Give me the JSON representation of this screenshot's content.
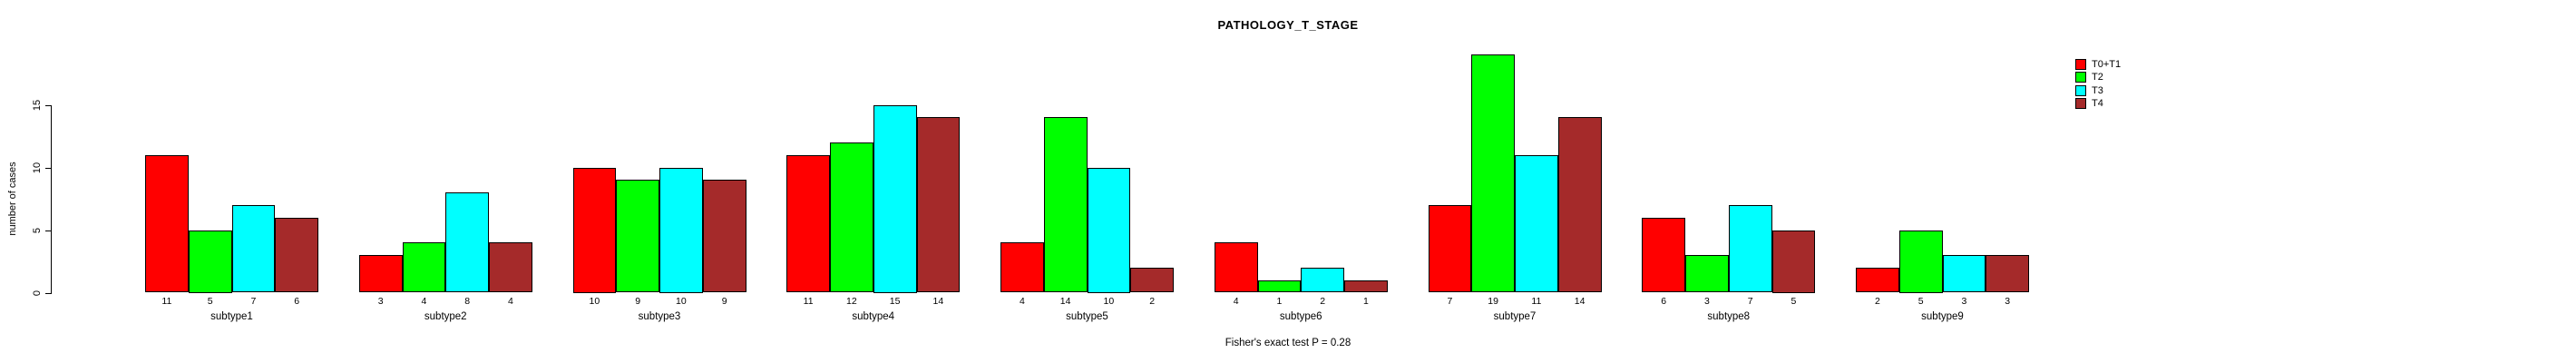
{
  "chart_data": {
    "type": "bar",
    "title": "PATHOLOGY_T_STAGE",
    "ylabel": "number of cases",
    "footer": "Fisher's exact test P = 0.28",
    "categories": [
      "subtype1",
      "subtype2",
      "subtype3",
      "subtype4",
      "subtype5",
      "subtype6",
      "subtype7",
      "subtype8",
      "subtype9"
    ],
    "series": [
      {
        "name": "T0+T1",
        "color": "#FF0000",
        "values": [
          11,
          3,
          10,
          11,
          4,
          4,
          7,
          6,
          2
        ]
      },
      {
        "name": "T2",
        "color": "#00FF00",
        "values": [
          5,
          4,
          9,
          12,
          14,
          1,
          19,
          3,
          5
        ]
      },
      {
        "name": "T3",
        "color": "#00FFFF",
        "values": [
          7,
          8,
          10,
          15,
          10,
          2,
          11,
          7,
          3
        ]
      },
      {
        "name": "T4",
        "color": "#A52A2A",
        "values": [
          6,
          4,
          9,
          14,
          2,
          1,
          14,
          5,
          3
        ]
      }
    ],
    "yticks": [
      0,
      5,
      10,
      15
    ],
    "ylim": [
      0,
      19
    ],
    "grid": false,
    "bar_value_labels": true,
    "legend_position": "top-right"
  }
}
